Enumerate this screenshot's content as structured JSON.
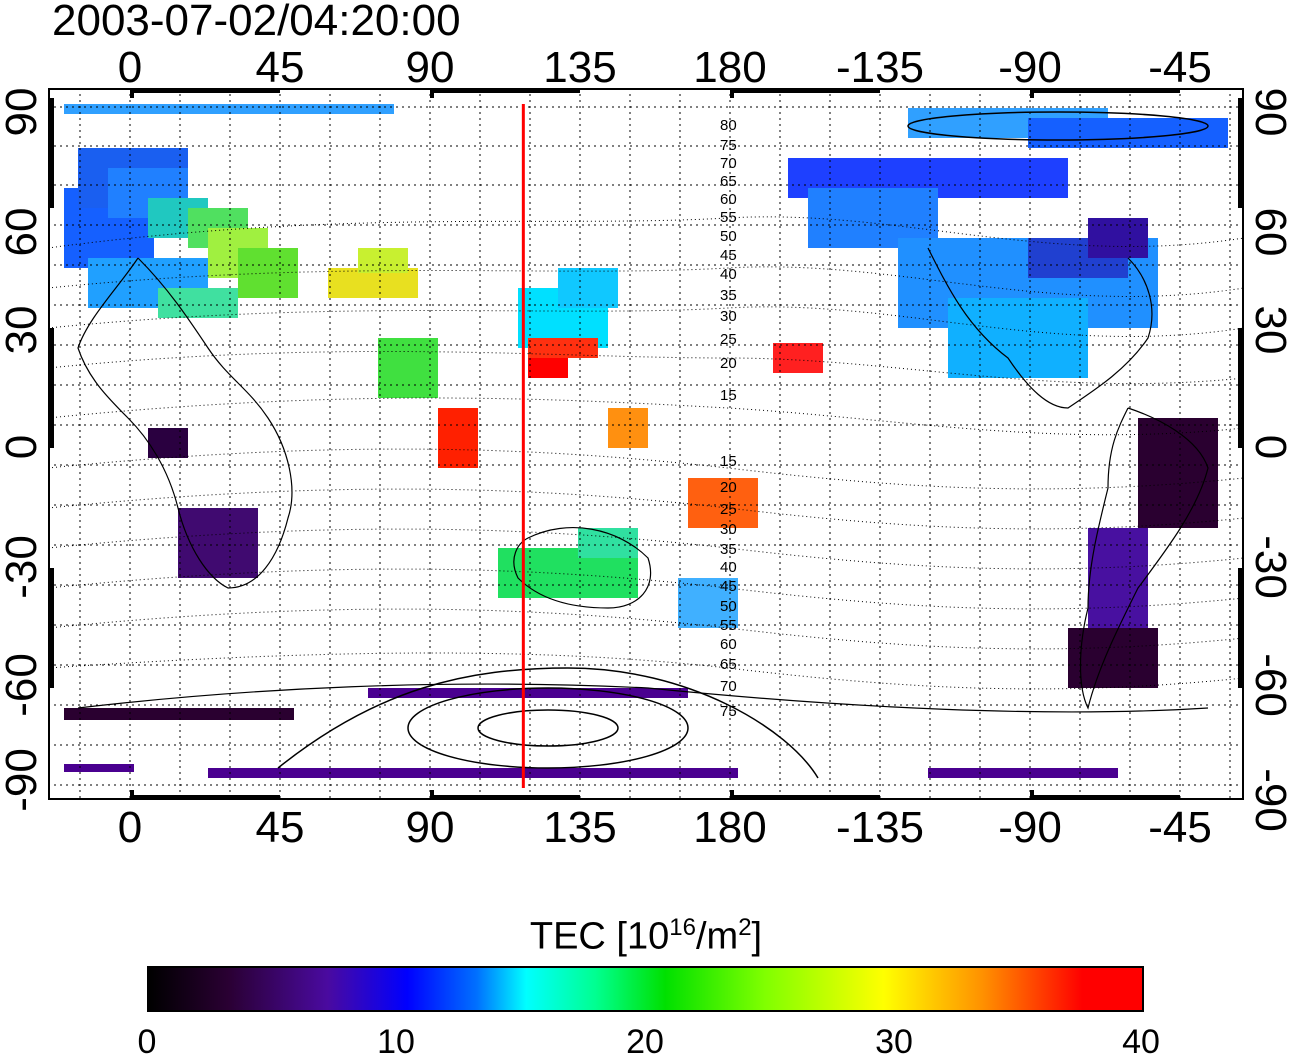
{
  "timestamp": "2003-07-02/04:20:00",
  "lon_ticks_top": [
    "0",
    "45",
    "90",
    "135",
    "180",
    "-135",
    "-90",
    "-45"
  ],
  "lon_ticks_bottom": [
    "0",
    "45",
    "90",
    "135",
    "180",
    "-135",
    "-90",
    "-45"
  ],
  "lat_ticks_left": [
    "90",
    "60",
    "30",
    "0",
    "-30",
    "-60",
    "-90"
  ],
  "lat_ticks_right": [
    "90",
    "60",
    "30",
    "0",
    "-30",
    "-60",
    "-90"
  ],
  "contour_labels_north": [
    "80",
    "75",
    "70",
    "65",
    "60",
    "55",
    "50",
    "45",
    "40",
    "35",
    "30",
    "25",
    "20",
    "15"
  ],
  "contour_labels_south": [
    "15",
    "20",
    "25",
    "30",
    "35",
    "40",
    "45",
    "50",
    "55",
    "60",
    "65",
    "70",
    "75"
  ],
  "colorbar": {
    "title_prefix": "TEC  [10",
    "title_exp1": "16",
    "title_mid": "/m",
    "title_exp2": "2",
    "title_suffix": "]",
    "ticks": [
      "0",
      "10",
      "20",
      "30",
      "40"
    ],
    "range": [
      0,
      40
    ]
  },
  "meridian_marker_lon": 118,
  "colors": {
    "marker": "#ff0000",
    "contours": "#000000",
    "grid": "#000000"
  }
}
